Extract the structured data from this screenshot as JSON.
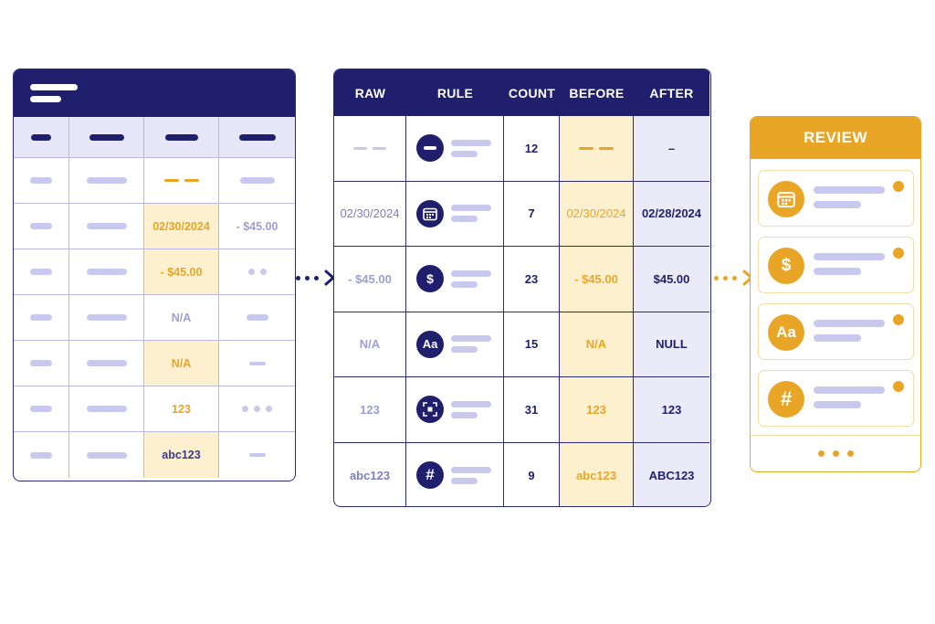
{
  "colors": {
    "navy": "#1f1f6e",
    "lavender": "#c9c8ee",
    "gold": "#e8a526",
    "gold_highlight": "#fdf0cf",
    "after_highlight": "#ebeaf9"
  },
  "raw_sheet": {
    "rows": [
      {
        "c3": "",
        "c4": ""
      },
      {
        "c3": "02/30/2024",
        "c4": "- $45.00"
      },
      {
        "c3": "- $45.00",
        "c4": ""
      },
      {
        "c3": "N/A",
        "c4": ""
      },
      {
        "c3": "N/A",
        "c4": ""
      },
      {
        "c3": "123",
        "c4": ""
      },
      {
        "c3": "abc123",
        "c4": ""
      }
    ]
  },
  "rules_table": {
    "headers": [
      "RAW",
      "RULE",
      "COUNT",
      "BEFORE",
      "AFTER"
    ],
    "rows": [
      {
        "raw": "",
        "rule_icon": "minus-icon",
        "count": "12",
        "before": "",
        "after": "–"
      },
      {
        "raw": "02/30/2024",
        "rule_icon": "calendar-icon",
        "count": "7",
        "before": "02/30/2024",
        "after": "02/28/2024"
      },
      {
        "raw": "- $45.00",
        "rule_icon": "dollar-icon",
        "count": "23",
        "before": "- $45.00",
        "after": "$45.00"
      },
      {
        "raw": "N/A",
        "rule_icon": "text-case-icon",
        "count": "15",
        "before": "N/A",
        "after": "NULL"
      },
      {
        "raw": "123",
        "rule_icon": "scan-icon",
        "count": "31",
        "before": "123",
        "after": "123"
      },
      {
        "raw": "abc123",
        "rule_icon": "hash-icon",
        "count": "9",
        "before": "abc123",
        "after": "ABC123"
      }
    ]
  },
  "review_panel": {
    "title": "REVIEW",
    "cards": [
      {
        "icon": "calendar-icon"
      },
      {
        "icon": "dollar-icon",
        "glyph": "$"
      },
      {
        "icon": "text-case-icon",
        "glyph": "Aa"
      },
      {
        "icon": "hash-icon",
        "glyph": "#"
      }
    ]
  },
  "glyphs": {
    "dollar": "$",
    "text_case": "Aa",
    "hash": "#",
    "minus": "–"
  }
}
